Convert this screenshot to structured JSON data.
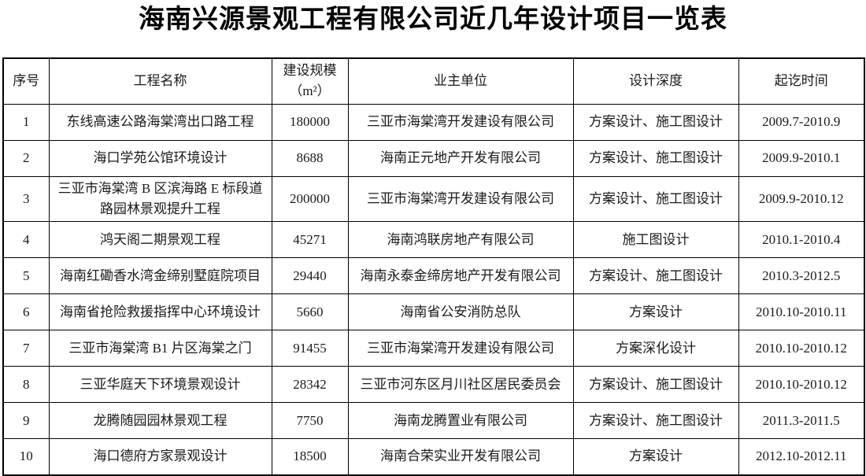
{
  "page": {
    "title": "海南兴源景观工程有限公司近几年设计项目一览表"
  },
  "table": {
    "columns": [
      {
        "id": "seq",
        "lines": [
          "序号"
        ]
      },
      {
        "id": "name",
        "lines": [
          "工程名称"
        ]
      },
      {
        "id": "scale",
        "lines": [
          "建设规模",
          "（m²）"
        ]
      },
      {
        "id": "owner",
        "lines": [
          "业主单位"
        ]
      },
      {
        "id": "depth",
        "lines": [
          "设计深度"
        ]
      },
      {
        "id": "time",
        "lines": [
          "起讫时间"
        ]
      }
    ],
    "rows": [
      [
        "1",
        "东线高速公路海棠湾出口路工程",
        "180000",
        "三亚市海棠湾开发建设有限公司",
        "方案设计、施工图设计",
        "2009.7-2010.9"
      ],
      [
        "2",
        "海口学苑公馆环境设计",
        "8688",
        "海南正元地产开发有限公司",
        "方案设计、施工图设计",
        "2009.9-2010.1"
      ],
      [
        "3",
        "三亚市海棠湾 B 区滨海路 E 标段道路园林景观提升工程",
        "200000",
        "三亚市海棠湾开发建设有限公司",
        "方案设计、施工图设计",
        "2009.9-2010.12"
      ],
      [
        "4",
        "鸿天阁二期景观工程",
        "45271",
        "海南鸿联房地产有限公司",
        "施工图设计",
        "2010.1-2010.4"
      ],
      [
        "5",
        "海南红磡香水湾金缔别墅庭院项目",
        "29440",
        "海南永泰金缔房地产开发有限公司",
        "方案设计、施工图设计",
        "2010.3-2012.5"
      ],
      [
        "6",
        "海南省抢险救援指挥中心环境设计",
        "5660",
        "海南省公安消防总队",
        "方案设计",
        "2010.10-2010.11"
      ],
      [
        "7",
        "三亚市海棠湾 B1 片区海棠之门",
        "91455",
        "三亚市海棠湾开发建设有限公司",
        "方案深化设计",
        "2010.10-2010.12"
      ],
      [
        "8",
        "三亚华庭天下环境景观设计",
        "28342",
        "三亚市河东区月川社区居民委员会",
        "方案设计、施工图设计",
        "2010.10-2010.12"
      ],
      [
        "9",
        "龙腾随园园林景观工程",
        "7750",
        "海南龙腾置业有限公司",
        "方案设计、施工图设计",
        "2011.3-2011.5"
      ],
      [
        "10",
        "海口德府方家景观设计",
        "18500",
        "海南合荣实业开发有限公司",
        "方案设计",
        "2012.10-2012.11"
      ]
    ]
  }
}
